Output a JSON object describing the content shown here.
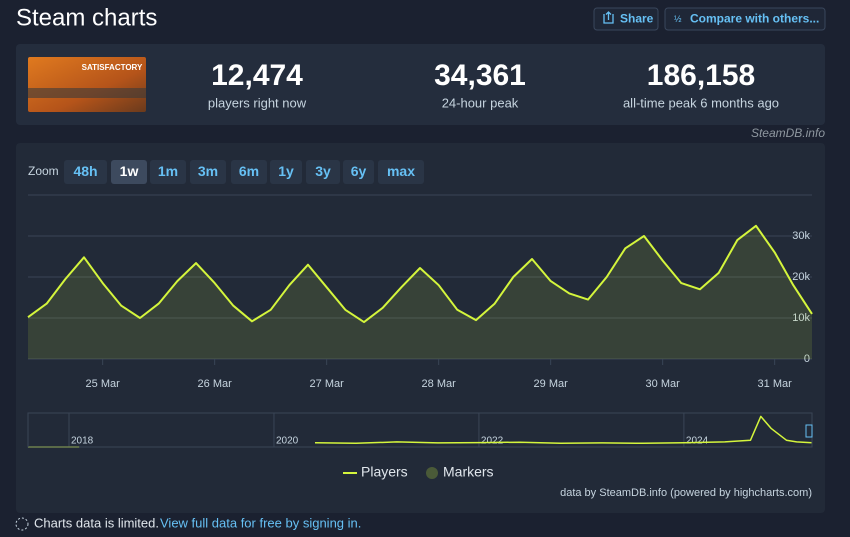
{
  "header": {
    "title": "Steam charts",
    "buttons": [
      "Share",
      "Compare with others..."
    ]
  },
  "game_logo_text": "SATISFACTORY",
  "stats": [
    {
      "value": "12,474",
      "label": "players right now"
    },
    {
      "value": "34,361",
      "label": "24-hour peak"
    },
    {
      "value": "186,158",
      "label": "all-time peak 6 months ago"
    }
  ],
  "credit": "SteamDB.info",
  "zoom": {
    "label": "Zoom",
    "buttons": [
      "48h",
      "1w",
      "1m",
      "3m",
      "6m",
      "1y",
      "3y",
      "6y",
      "max"
    ],
    "selected": 1
  },
  "chart_data": [
    {
      "type": "line",
      "categories": [
        null,
        null,
        null,
        null,
        "25 Mar",
        null,
        null,
        null,
        null,
        null,
        "26 Mar",
        null,
        null,
        null,
        null,
        null,
        "27 Mar",
        null,
        null,
        null,
        null,
        null,
        "28 Mar",
        null,
        null,
        null,
        null,
        null,
        "29 Mar",
        null,
        null,
        null,
        null,
        null,
        "30 Mar",
        null,
        null,
        null,
        null,
        null,
        "31 Mar",
        null,
        null
      ],
      "series": [
        {
          "name": "Players",
          "color": "#d4f53c",
          "values": [
            10200,
            13500,
            19500,
            24800,
            18500,
            13000,
            10000,
            13500,
            19000,
            23400,
            18500,
            13000,
            9200,
            12000,
            18000,
            23000,
            17500,
            12000,
            9000,
            12500,
            17500,
            22200,
            18000,
            12000,
            9500,
            13500,
            20000,
            24400,
            19000,
            16000,
            14500,
            20000,
            27000,
            30000,
            24000,
            18500,
            17000,
            21000,
            29000,
            32500,
            26000,
            18000,
            11000
          ]
        }
      ],
      "legend_extra": [
        {
          "name": "Markers",
          "color": "#4a5a38"
        }
      ],
      "ylim": [
        0,
        40000
      ],
      "yticks": [
        0,
        {
          "value": 10000,
          "label": "10k"
        },
        {
          "value": 20000,
          "label": "20k"
        },
        {
          "value": 30000,
          "label": "30k"
        }
      ],
      "grid": true
    },
    {
      "type": "line",
      "x": [
        2017.6,
        2018.1,
        2019.0,
        2020.4,
        2020.8,
        2021.2,
        2021.6,
        2022.0,
        2022.4,
        2022.8,
        2023.2,
        2023.6,
        2024.0,
        2024.4,
        2024.65,
        2024.75,
        2024.85,
        2025.0,
        2025.1,
        2025.25
      ],
      "series": [
        {
          "name": "Players",
          "color": "#d4f53c",
          "values": [
            0,
            0,
            null,
            25000,
            22000,
            30000,
            24000,
            26000,
            28000,
            22000,
            24000,
            22000,
            25000,
            30000,
            40000,
            180000,
            110000,
            40000,
            30000,
            25000
          ]
        }
      ],
      "xlim": [
        2017.6,
        2025.25
      ],
      "xticks": [
        2018,
        2020,
        2022,
        2024
      ],
      "ylim": [
        0,
        200000
      ]
    }
  ],
  "footer_credit": "data by SteamDB.info (powered by highcharts.com)",
  "notice": {
    "text": "Charts data is limited.",
    "link": "View full data for free by signing in."
  }
}
